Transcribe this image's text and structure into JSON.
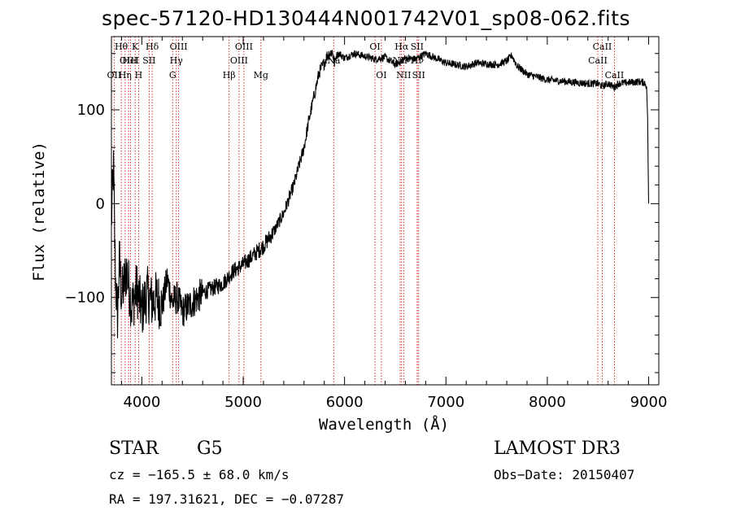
{
  "title": "spec-57120-HD130444N001742V01_sp08-062.fits",
  "info": {
    "object_class": "STAR",
    "subclass": "G5",
    "survey": "LAMOST DR3",
    "cz_text": "cz = −165.5 ± 68.0 km/s",
    "obs_date_text": "Obs−Date: 20150407",
    "radec_text": "RA = 197.31621, DEC =  −0.07287"
  },
  "colors": {
    "spectrum": "#000000",
    "line_marker": "#cc0000",
    "axis": "#000000"
  },
  "chart_data": {
    "type": "line",
    "title": "spec-57120-HD130444N001742V01_sp08-062.fits",
    "xlabel": "Wavelength (Å)",
    "ylabel": "Flux (relative)",
    "xlim": [
      3700,
      9100
    ],
    "ylim": [
      -193,
      178
    ],
    "xticks": [
      4000,
      5000,
      6000,
      7000,
      8000,
      9000
    ],
    "yticks": [
      -100,
      0,
      100
    ],
    "series": [
      {
        "name": "flux",
        "x": [
          3700,
          3720,
          3740,
          3760,
          3780,
          3800,
          3850,
          3900,
          3950,
          4000,
          4050,
          4100,
          4150,
          4200,
          4250,
          4300,
          4350,
          4400,
          4500,
          4600,
          4700,
          4800,
          4900,
          5000,
          5100,
          5200,
          5300,
          5400,
          5500,
          5600,
          5650,
          5700,
          5720,
          5750,
          5800,
          5830,
          5850,
          5880,
          5900,
          5920,
          5950,
          6000,
          6050,
          6100,
          6200,
          6300,
          6400,
          6500,
          6560,
          6600,
          6700,
          6800,
          6900,
          7000,
          7100,
          7200,
          7300,
          7400,
          7500,
          7600,
          7650,
          7700,
          7800,
          7900,
          8000,
          8100,
          8200,
          8300,
          8400,
          8500,
          8540,
          8600,
          8660,
          8700,
          8800,
          8900,
          8960,
          8980,
          8990,
          8995,
          9000
        ],
        "y": [
          -20,
          40,
          -80,
          -120,
          -60,
          -100,
          -70,
          -110,
          -90,
          -115,
          -95,
          -105,
          -100,
          -110,
          -80,
          -105,
          -100,
          -115,
          -105,
          -95,
          -90,
          -85,
          -72,
          -65,
          -55,
          -45,
          -30,
          -10,
          20,
          60,
          90,
          115,
          125,
          140,
          150,
          158,
          160,
          162,
          150,
          158,
          160,
          155,
          158,
          160,
          157,
          154,
          156,
          148,
          152,
          155,
          154,
          160,
          155,
          150,
          148,
          146,
          150,
          149,
          148,
          152,
          158,
          147,
          138,
          135,
          132,
          131,
          130,
          129,
          128,
          128,
          125,
          128,
          124,
          128,
          129,
          130,
          129,
          125,
          90,
          40,
          0
        ]
      }
    ],
    "line_markers": [
      {
        "wavelength": 3727,
        "label": "OII",
        "row": 3
      },
      {
        "wavelength": 3797,
        "label": "Hθ",
        "row": 1
      },
      {
        "wavelength": 3835,
        "label": "Hη",
        "row": 3
      },
      {
        "wavelength": 3869,
        "label": "OIII",
        "row": 2
      },
      {
        "wavelength": 3889,
        "label": "HeI",
        "row": 2
      },
      {
        "wavelength": 3934,
        "label": "K",
        "row": 1
      },
      {
        "wavelength": 3968,
        "label": "H",
        "row": 3
      },
      {
        "wavelength": 4072,
        "label": "SII",
        "row": 2
      },
      {
        "wavelength": 4102,
        "label": "Hδ",
        "row": 1
      },
      {
        "wavelength": 4304,
        "label": "G",
        "row": 3
      },
      {
        "wavelength": 4340,
        "label": "Hγ",
        "row": 2
      },
      {
        "wavelength": 4363,
        "label": "OIII",
        "row": 1
      },
      {
        "wavelength": 4861,
        "label": "Hβ",
        "row": 3
      },
      {
        "wavelength": 4959,
        "label": "OIII",
        "row": 2
      },
      {
        "wavelength": 5007,
        "label": "OIII",
        "row": 1
      },
      {
        "wavelength": 5175,
        "label": "Mg",
        "row": 3
      },
      {
        "wavelength": 5893,
        "label": "Na",
        "row": 2
      },
      {
        "wavelength": 6300,
        "label": "OI",
        "row": 1
      },
      {
        "wavelength": 6363,
        "label": "OI",
        "row": 3
      },
      {
        "wavelength": 6548,
        "label": "NII",
        "row": 2
      },
      {
        "wavelength": 6563,
        "label": "Hα",
        "row": 1
      },
      {
        "wavelength": 6583,
        "label": "NII",
        "row": 3
      },
      {
        "wavelength": 6716,
        "label": "SII",
        "row": 1
      },
      {
        "wavelength": 6716,
        "label": "Hν",
        "row": 2
      },
      {
        "wavelength": 6731,
        "label": "SII",
        "row": 3
      },
      {
        "wavelength": 8498,
        "label": "CaII",
        "row": 2
      },
      {
        "wavelength": 8542,
        "label": "CaII",
        "row": 1
      },
      {
        "wavelength": 8662,
        "label": "CaII",
        "row": 3
      }
    ]
  }
}
